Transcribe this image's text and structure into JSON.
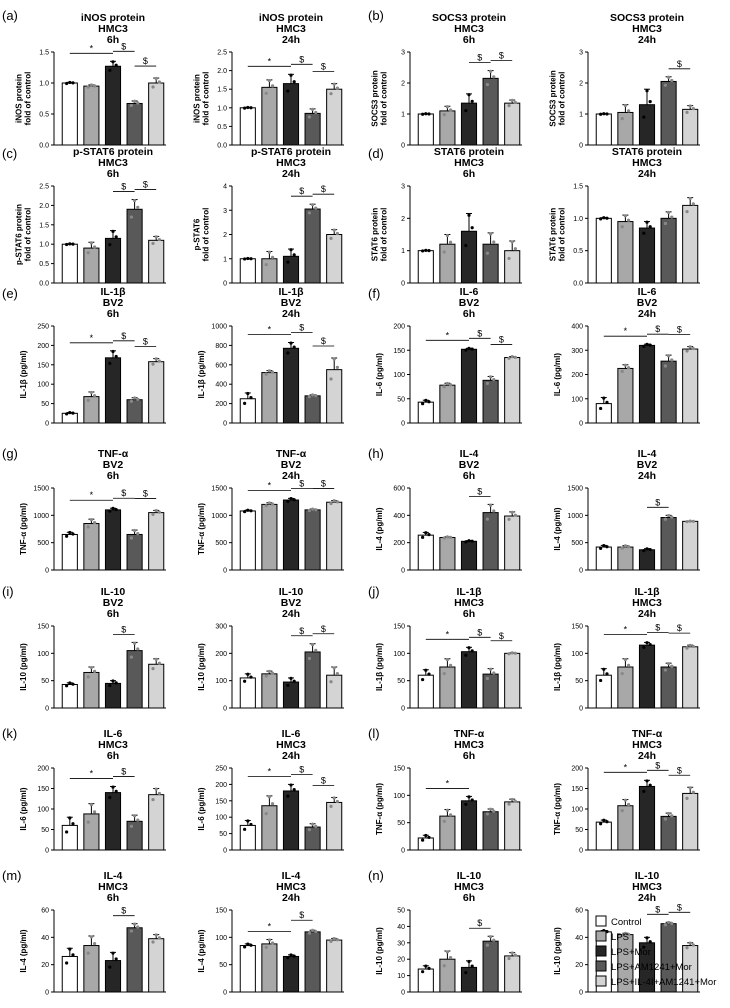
{
  "panel_labels": [
    "(a)",
    "(b)",
    "(c)",
    "(d)",
    "(e)",
    "(f)",
    "(g)",
    "(h)",
    "(i)",
    "(j)",
    "(k)",
    "(l)",
    "(m)",
    "(n)"
  ],
  "legend": [
    {
      "label": "Control",
      "color": "#ffffff"
    },
    {
      "label": "LPS",
      "color": "#a8a8a8"
    },
    {
      "label": "LPS+Mor",
      "color": "#262626"
    },
    {
      "label": "LPS+AM1241+Mor",
      "color": "#595959"
    },
    {
      "label": "LPS+IL-4I+AM1241+Mor",
      "color": "#d4d4d4"
    }
  ],
  "chart_data": [
    {
      "type": "bar",
      "title": [
        "iNOS protein",
        "HMC3",
        "6h"
      ],
      "ylabel": [
        "iNOS protein",
        "fold of control"
      ],
      "ylim": [
        0,
        1.5
      ],
      "yticks": [
        "0.0",
        "0.5",
        "1.0",
        "1.5"
      ],
      "values": [
        1.0,
        0.95,
        1.27,
        0.67,
        1.0
      ],
      "errors": [
        0.01,
        0.02,
        0.08,
        0.04,
        0.08
      ],
      "sig": [
        {
          "a": 0,
          "b": 2,
          "text": "*"
        },
        {
          "a": 2,
          "b": 3,
          "text": "$"
        },
        {
          "a": 3,
          "b": 4,
          "text": "$"
        }
      ]
    },
    {
      "type": "bar",
      "title": [
        "iNOS protein",
        "HMC3",
        "24h"
      ],
      "ylabel": [
        "iNOS protein",
        "fold of control"
      ],
      "ylim": [
        0,
        2.5
      ],
      "yticks": [
        "0.0",
        "0.5",
        "1.0",
        "1.5",
        "2.0",
        "2.5"
      ],
      "values": [
        1.0,
        1.55,
        1.65,
        0.85,
        1.5
      ],
      "errors": [
        0.01,
        0.2,
        0.25,
        0.12,
        0.15
      ],
      "sig": [
        {
          "a": 0,
          "b": 2,
          "text": "*"
        },
        {
          "a": 2,
          "b": 3,
          "text": "$"
        },
        {
          "a": 3,
          "b": 4,
          "text": "$"
        }
      ]
    },
    {
      "type": "bar",
      "title": [
        "SOCS3 protein",
        "HMC3",
        "6h"
      ],
      "ylabel": [
        "SOCS3 protein",
        "fold of control"
      ],
      "ylim": [
        0,
        3
      ],
      "yticks": [
        "0",
        "1",
        "2",
        "3"
      ],
      "values": [
        1.0,
        1.1,
        1.35,
        2.15,
        1.35
      ],
      "errors": [
        0.01,
        0.15,
        0.3,
        0.25,
        0.1
      ],
      "sig": [
        {
          "a": 2,
          "b": 3,
          "text": "$"
        },
        {
          "a": 3,
          "b": 4,
          "text": "$"
        }
      ]
    },
    {
      "type": "bar",
      "title": [
        "SOCS3 protein",
        "HMC3",
        "24h"
      ],
      "ylabel": [
        "SOCS3 protein",
        "fold of control"
      ],
      "ylim": [
        0,
        3
      ],
      "yticks": [
        "0",
        "1",
        "2",
        "3"
      ],
      "values": [
        1.0,
        1.05,
        1.3,
        2.05,
        1.15
      ],
      "errors": [
        0.01,
        0.25,
        0.5,
        0.15,
        0.12
      ],
      "sig": [
        {
          "a": 3,
          "b": 4,
          "text": "$"
        }
      ]
    },
    {
      "type": "bar",
      "title": [
        "p-STAT6 protein",
        "HMC3",
        "6h"
      ],
      "ylabel": [
        "p-STAT6 protein",
        "fold of control"
      ],
      "ylim": [
        0,
        2.5
      ],
      "yticks": [
        "0.0",
        "0.5",
        "1.0",
        "1.5",
        "2.0",
        "2.5"
      ],
      "values": [
        1.0,
        0.9,
        1.15,
        1.9,
        1.1
      ],
      "errors": [
        0.01,
        0.15,
        0.2,
        0.25,
        0.1
      ],
      "sig": [
        {
          "a": 2,
          "b": 3,
          "text": "$"
        },
        {
          "a": 3,
          "b": 4,
          "text": "$"
        }
      ]
    },
    {
      "type": "bar",
      "title": [
        "p-STAT6 protein",
        "HMC3",
        "24h"
      ],
      "ylabel": [
        "p-STAT6",
        "fold of control"
      ],
      "ylim": [
        0,
        4
      ],
      "yticks": [
        "0",
        "1",
        "2",
        "3",
        "4"
      ],
      "values": [
        1.0,
        1.0,
        1.1,
        3.05,
        2.0
      ],
      "errors": [
        0.01,
        0.3,
        0.3,
        0.2,
        0.2
      ],
      "sig": [
        {
          "a": 2,
          "b": 3,
          "text": "$"
        },
        {
          "a": 3,
          "b": 4,
          "text": "$"
        }
      ]
    },
    {
      "type": "bar",
      "title": [
        "STAT6 protein",
        "HMC3",
        "6h"
      ],
      "ylabel": [
        "STAT6 protein",
        "fold of control"
      ],
      "ylim": [
        0,
        3
      ],
      "yticks": [
        "0",
        "1",
        "2",
        "3"
      ],
      "values": [
        1.0,
        1.2,
        1.6,
        1.2,
        1.0
      ],
      "errors": [
        0.01,
        0.3,
        0.55,
        0.35,
        0.3
      ],
      "sig": []
    },
    {
      "type": "bar",
      "title": [
        "STAT6 protein",
        "HMC3",
        "24h"
      ],
      "ylabel": [
        "STAT6 protein",
        "fold of control"
      ],
      "ylim": [
        0,
        1.5
      ],
      "yticks": [
        "0.0",
        "0.5",
        "1.0",
        "1.5"
      ],
      "values": [
        1.0,
        0.95,
        0.85,
        1.0,
        1.2
      ],
      "errors": [
        0.01,
        0.1,
        0.1,
        0.1,
        0.12
      ],
      "sig": []
    },
    {
      "type": "bar",
      "title": [
        "IL-1β",
        "BV2",
        "6h"
      ],
      "ylabel": [
        "IL-1β (pg/ml)"
      ],
      "ylim": [
        0,
        250
      ],
      "yticks": [
        "0",
        "50",
        "100",
        "150",
        "200",
        "250"
      ],
      "values": [
        25,
        68,
        168,
        60,
        158
      ],
      "errors": [
        2,
        12,
        18,
        5,
        8
      ],
      "sig": [
        {
          "a": 0,
          "b": 2,
          "text": "*"
        },
        {
          "a": 2,
          "b": 3,
          "text": "$"
        },
        {
          "a": 3,
          "b": 4,
          "text": "$"
        }
      ]
    },
    {
      "type": "bar",
      "title": [
        "IL-1β",
        "BV2",
        "24h"
      ],
      "ylabel": [
        "IL-1β (pg/ml)"
      ],
      "ylim": [
        0,
        1000
      ],
      "yticks": [
        "0",
        "200",
        "400",
        "600",
        "800",
        "1000"
      ],
      "values": [
        250,
        520,
        770,
        280,
        550
      ],
      "errors": [
        60,
        20,
        60,
        10,
        120
      ],
      "sig": [
        {
          "a": 0,
          "b": 2,
          "text": "*"
        },
        {
          "a": 2,
          "b": 3,
          "text": "$"
        },
        {
          "a": 3,
          "b": 4,
          "text": "$"
        }
      ]
    },
    {
      "type": "bar",
      "title": [
        "IL-6",
        "BV2",
        "6h"
      ],
      "ylabel": [
        "IL-6 (pg/ml)"
      ],
      "ylim": [
        0,
        200
      ],
      "yticks": [
        "0",
        "50",
        "100",
        "150",
        "200"
      ],
      "values": [
        43,
        78,
        152,
        88,
        135
      ],
      "errors": [
        4,
        4,
        2,
        8,
        2
      ],
      "sig": [
        {
          "a": 0,
          "b": 2,
          "text": "*"
        },
        {
          "a": 2,
          "b": 3,
          "text": "$"
        },
        {
          "a": 3,
          "b": 4,
          "text": "$"
        }
      ]
    },
    {
      "type": "bar",
      "title": [
        "IL-6",
        "BV2",
        "24h"
      ],
      "ylabel": [
        "IL-6 (pg/ml)"
      ],
      "ylim": [
        0,
        400
      ],
      "yticks": [
        "0",
        "100",
        "200",
        "300",
        "400"
      ],
      "values": [
        80,
        225,
        320,
        255,
        305
      ],
      "errors": [
        25,
        15,
        5,
        25,
        10
      ],
      "sig": [
        {
          "a": 0,
          "b": 2,
          "text": "*"
        },
        {
          "a": 2,
          "b": 3,
          "text": "$"
        },
        {
          "a": 3,
          "b": 4,
          "text": "$"
        }
      ]
    },
    {
      "type": "bar",
      "title": [
        "TNF-α",
        "BV2",
        "6h"
      ],
      "ylabel": [
        "TNF-α (pg/ml)"
      ],
      "ylim": [
        0,
        1500
      ],
      "yticks": [
        "0",
        "500",
        "1000",
        "1500"
      ],
      "values": [
        650,
        850,
        1100,
        650,
        1050
      ],
      "errors": [
        40,
        80,
        30,
        80,
        40
      ],
      "sig": [
        {
          "a": 0,
          "b": 2,
          "text": "*"
        },
        {
          "a": 2,
          "b": 3,
          "text": "$"
        },
        {
          "a": 3,
          "b": 4,
          "text": "$"
        }
      ]
    },
    {
      "type": "bar",
      "title": [
        "TNF-α",
        "BV2",
        "24h"
      ],
      "ylabel": [
        "TNF-α (pg/ml)"
      ],
      "ylim": [
        0,
        1500
      ],
      "yticks": [
        "0",
        "500",
        "1000",
        "1500"
      ],
      "values": [
        1080,
        1200,
        1280,
        1100,
        1240
      ],
      "errors": [
        15,
        30,
        30,
        15,
        30
      ],
      "sig": [
        {
          "a": 0,
          "b": 2,
          "text": "*"
        },
        {
          "a": 2,
          "b": 3,
          "text": "$"
        },
        {
          "a": 3,
          "b": 4,
          "text": "$"
        }
      ]
    },
    {
      "type": "bar",
      "title": [
        "IL-4",
        "BV2",
        "6h"
      ],
      "ylabel": [
        "IL-4 (pg/ml)"
      ],
      "ylim": [
        0,
        600
      ],
      "yticks": [
        "0",
        "200",
        "400",
        "600"
      ],
      "values": [
        255,
        238,
        210,
        420,
        395
      ],
      "errors": [
        20,
        5,
        5,
        60,
        30
      ],
      "sig": [
        {
          "a": 2,
          "b": 3,
          "text": "$"
        }
      ]
    },
    {
      "type": "bar",
      "title": [
        "IL-4",
        "BV2",
        "24h"
      ],
      "ylabel": [
        "IL-4 (pg/ml)"
      ],
      "ylim": [
        0,
        1500
      ],
      "yticks": [
        "0",
        "500",
        "1000",
        "1500"
      ],
      "values": [
        420,
        420,
        370,
        960,
        890
      ],
      "errors": [
        30,
        25,
        20,
        40,
        5
      ],
      "sig": [
        {
          "a": 2,
          "b": 3,
          "text": "$"
        }
      ]
    },
    {
      "type": "bar",
      "title": [
        "IL-10",
        "BV2",
        "6h"
      ],
      "ylabel": [
        "IL-10 (pg/ml)"
      ],
      "ylim": [
        0,
        150
      ],
      "yticks": [
        "0",
        "50",
        "100",
        "150"
      ],
      "values": [
        43,
        65,
        45,
        105,
        80
      ],
      "errors": [
        3,
        10,
        5,
        15,
        10
      ],
      "sig": [
        {
          "a": 2,
          "b": 3,
          "text": "$"
        }
      ]
    },
    {
      "type": "bar",
      "title": [
        "IL-10",
        "BV2",
        "24h"
      ],
      "ylabel": [
        "IL-10 (pg/ml)"
      ],
      "ylim": [
        0,
        300
      ],
      "yticks": [
        "0",
        "100",
        "200",
        "300"
      ],
      "values": [
        110,
        125,
        95,
        205,
        120
      ],
      "errors": [
        15,
        10,
        15,
        30,
        30
      ],
      "sig": [
        {
          "a": 2,
          "b": 3,
          "text": "$"
        },
        {
          "a": 3,
          "b": 4,
          "text": "$"
        }
      ]
    },
    {
      "type": "bar",
      "title": [
        "IL-1β",
        "HMC3",
        "6h"
      ],
      "ylabel": [
        "IL-1β (pg/ml)"
      ],
      "ylim": [
        0,
        150
      ],
      "yticks": [
        "0",
        "50",
        "100",
        "150"
      ],
      "values": [
        60,
        75,
        103,
        62,
        100
      ],
      "errors": [
        10,
        15,
        8,
        10,
        1
      ],
      "sig": [
        {
          "a": 0,
          "b": 2,
          "text": "*"
        },
        {
          "a": 2,
          "b": 3,
          "text": "$"
        },
        {
          "a": 3,
          "b": 4,
          "text": "$"
        }
      ]
    },
    {
      "type": "bar",
      "title": [
        "IL-1β",
        "HMC3",
        "24h"
      ],
      "ylabel": [
        "IL-1β (pg/ml)"
      ],
      "ylim": [
        0,
        150
      ],
      "yticks": [
        "0",
        "50",
        "100",
        "150"
      ],
      "values": [
        60,
        75,
        115,
        75,
        112
      ],
      "errors": [
        12,
        15,
        5,
        7,
        3
      ],
      "sig": [
        {
          "a": 0,
          "b": 2,
          "text": "*"
        },
        {
          "a": 2,
          "b": 3,
          "text": "$"
        },
        {
          "a": 3,
          "b": 4,
          "text": "$"
        }
      ]
    },
    {
      "type": "bar",
      "title": [
        "IL-6",
        "HMC3",
        "6h"
      ],
      "ylabel": [
        "IL-6 (pg/ml)"
      ],
      "ylim": [
        0,
        200
      ],
      "yticks": [
        "0",
        "50",
        "100",
        "150",
        "200"
      ],
      "values": [
        60,
        88,
        140,
        70,
        135
      ],
      "errors": [
        20,
        25,
        15,
        15,
        15
      ],
      "sig": [
        {
          "a": 0,
          "b": 2,
          "text": "*"
        },
        {
          "a": 2,
          "b": 3,
          "text": "$"
        }
      ]
    },
    {
      "type": "bar",
      "title": [
        "IL-6",
        "HMC3",
        "24h"
      ],
      "ylabel": [
        "IL-6 (pg/ml)"
      ],
      "ylim": [
        0,
        250
      ],
      "yticks": [
        "0",
        "50",
        "100",
        "150",
        "200",
        "250"
      ],
      "values": [
        75,
        135,
        180,
        70,
        145
      ],
      "errors": [
        15,
        30,
        20,
        10,
        15
      ],
      "sig": [
        {
          "a": 0,
          "b": 2,
          "text": "*"
        },
        {
          "a": 2,
          "b": 3,
          "text": "$"
        },
        {
          "a": 3,
          "b": 4,
          "text": "$"
        }
      ]
    },
    {
      "type": "bar",
      "title": [
        "TNF-α",
        "HMC3",
        "6h"
      ],
      "ylabel": [
        "TNF-α (pg/ml)"
      ],
      "ylim": [
        0,
        150
      ],
      "yticks": [
        "0",
        "50",
        "100",
        "150"
      ],
      "values": [
        22,
        62,
        90,
        70,
        88
      ],
      "errors": [
        5,
        12,
        8,
        5,
        5
      ],
      "sig": [
        {
          "a": 0,
          "b": 2,
          "text": "*"
        }
      ]
    },
    {
      "type": "bar",
      "title": [
        "TNF-α",
        "HMC3",
        "24h"
      ],
      "ylabel": [
        "TNF-α (pg/ml)"
      ],
      "ylim": [
        0,
        200
      ],
      "yticks": [
        "0",
        "50",
        "100",
        "150",
        "200"
      ],
      "values": [
        68,
        108,
        155,
        82,
        138
      ],
      "errors": [
        5,
        15,
        15,
        8,
        15
      ],
      "sig": [
        {
          "a": 0,
          "b": 2,
          "text": "*"
        },
        {
          "a": 2,
          "b": 3,
          "text": "$"
        },
        {
          "a": 3,
          "b": 4,
          "text": "$"
        }
      ]
    },
    {
      "type": "bar",
      "title": [
        "IL-4",
        "HMC3",
        "6h"
      ],
      "ylabel": [
        "IL-4 (pg/ml)"
      ],
      "ylim": [
        0,
        60
      ],
      "yticks": [
        "0",
        "20",
        "40",
        "60"
      ],
      "values": [
        26,
        34,
        23,
        47,
        39
      ],
      "errors": [
        6,
        7,
        6,
        3,
        3
      ],
      "sig": [
        {
          "a": 2,
          "b": 3,
          "text": "$"
        }
      ]
    },
    {
      "type": "bar",
      "title": [
        "IL-4",
        "HMC3",
        "24h"
      ],
      "ylabel": [
        "IL-4 (pg/ml)"
      ],
      "ylim": [
        0,
        150
      ],
      "yticks": [
        "0",
        "50",
        "100",
        "150"
      ],
      "values": [
        85,
        88,
        65,
        110,
        95
      ],
      "errors": [
        3,
        8,
        3,
        3,
        3
      ],
      "sig": [
        {
          "a": 0,
          "b": 2,
          "text": "*"
        },
        {
          "a": 2,
          "b": 3,
          "text": "$"
        }
      ]
    },
    {
      "type": "bar",
      "title": [
        "IL-10",
        "HMC3",
        "6h"
      ],
      "ylabel": [
        "IL-10 (pg/ml)"
      ],
      "ylim": [
        0,
        50
      ],
      "yticks": [
        "0",
        "10",
        "20",
        "30",
        "40",
        "50"
      ],
      "values": [
        14,
        20,
        15,
        31,
        22
      ],
      "errors": [
        2,
        5,
        4,
        3,
        2
      ],
      "sig": [
        {
          "a": 2,
          "b": 3,
          "text": "$"
        }
      ]
    },
    {
      "type": "bar",
      "title": [
        "IL-10",
        "HMC3",
        "24h"
      ],
      "ylabel": [
        "IL-10 (pg/ml)"
      ],
      "ylim": [
        0,
        60
      ],
      "yticks": [
        "0",
        "20",
        "40",
        "60"
      ],
      "values": [
        44,
        42,
        36,
        50,
        34
      ],
      "errors": [
        1,
        1,
        4,
        1,
        2
      ],
      "sig": [
        {
          "a": 2,
          "b": 3,
          "text": "$"
        },
        {
          "a": 3,
          "b": 4,
          "text": "$"
        }
      ]
    }
  ]
}
